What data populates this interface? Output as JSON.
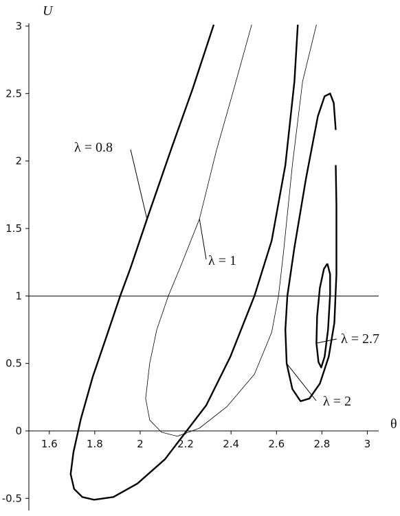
{
  "chart_data": {
    "type": "line",
    "xlabel": "θ",
    "ylabel": "U",
    "xlim": [
      1.51,
      3.05
    ],
    "ylim": [
      -0.59,
      3
    ],
    "xticks": [
      1.6,
      1.8,
      2,
      2.2,
      2.4,
      2.6,
      2.8,
      3
    ],
    "yticks": [
      -0.5,
      0,
      0.5,
      1,
      1.5,
      2,
      2.5,
      3
    ],
    "reference_line": 1,
    "series": [
      {
        "name": "λ = 0.8",
        "color": "#000000",
        "width": 2.4,
        "x": [
          2.324,
          2.23,
          2.139,
          2.03,
          1.958,
          1.912,
          1.852,
          1.791,
          1.739,
          1.706,
          1.694,
          1.709,
          1.745,
          1.797,
          1.882,
          1.988,
          2.109,
          2.2,
          2.291,
          2.397,
          2.503,
          2.579,
          2.639,
          2.679,
          2.694
        ],
        "values": [
          3.01,
          2.53,
          2.1,
          1.57,
          1.21,
          1.0,
          0.7,
          0.4,
          0.09,
          -0.16,
          -0.32,
          -0.43,
          -0.49,
          -0.51,
          -0.49,
          -0.39,
          -0.21,
          -0.01,
          0.19,
          0.55,
          1.0,
          1.41,
          1.97,
          2.59,
          3.01
        ]
      },
      {
        "name": "λ = 1",
        "color": "#000000",
        "width": 0.8,
        "x": [
          2.491,
          2.412,
          2.336,
          2.261,
          2.176,
          2.124,
          2.073,
          2.042,
          2.024,
          2.042,
          2.094,
          2.164,
          2.261,
          2.382,
          2.503,
          2.579,
          2.609,
          2.63,
          2.67,
          2.715,
          2.776
        ],
        "values": [
          3.01,
          2.53,
          2.08,
          1.57,
          1.21,
          1.0,
          0.75,
          0.5,
          0.24,
          0.08,
          -0.01,
          -0.04,
          0.02,
          0.18,
          0.42,
          0.73,
          1.0,
          1.31,
          1.97,
          2.59,
          3.01
        ]
      },
      {
        "name": "λ = 2",
        "color": "#000000",
        "width": 2.4,
        "x": [
          2.861,
          2.864,
          2.864,
          2.855,
          2.83,
          2.791,
          2.745,
          2.706,
          2.67,
          2.645,
          2.639,
          2.648,
          2.679,
          2.73,
          2.782,
          2.812,
          2.836,
          2.852,
          2.861
        ],
        "values": [
          1.97,
          1.67,
          1.16,
          0.8,
          0.55,
          0.35,
          0.24,
          0.22,
          0.31,
          0.5,
          0.75,
          1.0,
          1.36,
          1.87,
          2.33,
          2.48,
          2.5,
          2.43,
          2.23
        ]
      },
      {
        "name": "λ = 2.7",
        "color": "#000000",
        "width": 2.4,
        "x": [
          2.824,
          2.809,
          2.791,
          2.779,
          2.776,
          2.785,
          2.797,
          2.812,
          2.827,
          2.836,
          2.836,
          2.824
        ],
        "values": [
          1.24,
          1.2,
          1.06,
          0.85,
          0.65,
          0.51,
          0.47,
          0.55,
          0.75,
          1.01,
          1.16,
          1.24
        ]
      }
    ]
  }
}
